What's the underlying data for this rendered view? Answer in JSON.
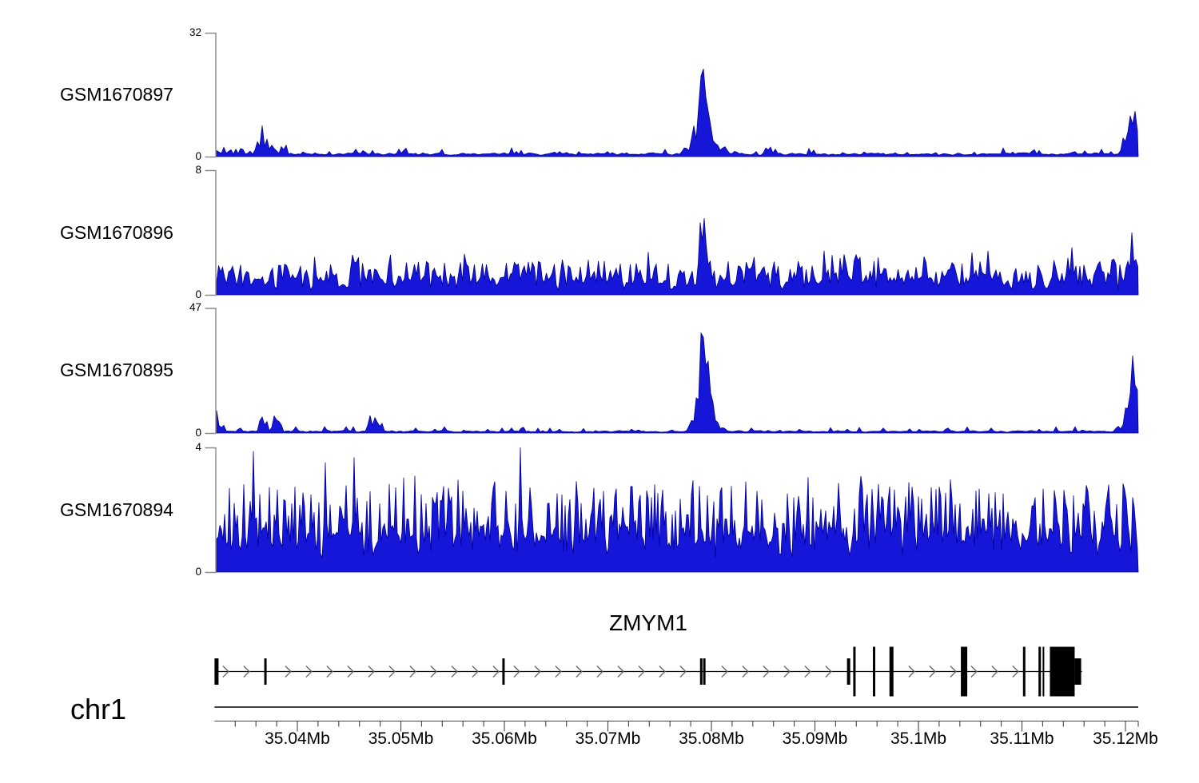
{
  "colors": {
    "coverage_fill": "#1616d8",
    "coverage_stroke": "#000099",
    "axis_bracket": "#8a8a8a",
    "ink": "#000000",
    "ruler": "#444444",
    "chevron": "#666666"
  },
  "chart_data": {
    "type": "area",
    "subtype": "genome-coverage-tracks",
    "x_axis": {
      "chrom": "chr1",
      "unit": "Mb",
      "range_mb": [
        35.032,
        35.1213
      ],
      "minor_tick_interval_mb": 0.002,
      "major_ticks": [
        {
          "mb": 35.04,
          "label": "35.04Mb"
        },
        {
          "mb": 35.05,
          "label": "35.05Mb"
        },
        {
          "mb": 35.06,
          "label": "35.06Mb"
        },
        {
          "mb": 35.07,
          "label": "35.07Mb"
        },
        {
          "mb": 35.08,
          "label": "35.08Mb"
        },
        {
          "mb": 35.09,
          "label": "35.09Mb"
        },
        {
          "mb": 35.1,
          "label": "35.1Mb"
        },
        {
          "mb": 35.11,
          "label": "35.11Mb"
        },
        {
          "mb": 35.12,
          "label": "35.12Mb"
        }
      ]
    },
    "peaks_x_unit": "screen_px",
    "tracks": [
      {
        "label": "GSM1670897",
        "ymin": 0,
        "ymax": 32,
        "texture": {
          "base": 0.01,
          "noise": 0.022,
          "spike_prob": 0.1,
          "spike_amp": 0.05,
          "seed": 7,
          "step": 3
        },
        "peaks": [
          [
            272,
            6,
            0.06
          ],
          [
            281,
            5,
            0.05
          ],
          [
            300,
            5,
            0.04
          ],
          [
            322,
            6,
            0.12
          ],
          [
            328,
            5,
            0.25
          ],
          [
            334,
            6,
            0.14
          ],
          [
            341,
            5,
            0.12
          ],
          [
            352,
            5,
            0.08
          ],
          [
            357,
            4,
            0.13
          ],
          [
            380,
            5,
            0.05
          ],
          [
            395,
            5,
            0.04
          ],
          [
            445,
            7,
            0.06
          ],
          [
            455,
            6,
            0.06
          ],
          [
            466,
            5,
            0.05
          ],
          [
            505,
            6,
            0.05
          ],
          [
            530,
            5,
            0.04
          ],
          [
            640,
            5,
            0.07
          ],
          [
            652,
            5,
            0.05
          ],
          [
            700,
            6,
            0.04
          ],
          [
            760,
            6,
            0.04
          ],
          [
            856,
            8,
            0.07
          ],
          [
            868,
            8,
            0.25
          ],
          [
            875,
            6,
            0.5
          ],
          [
            878,
            5,
            0.85
          ],
          [
            881,
            4,
            1.0
          ],
          [
            884,
            6,
            0.6
          ],
          [
            888,
            8,
            0.3
          ],
          [
            896,
            10,
            0.12
          ],
          [
            906,
            10,
            0.09
          ],
          [
            920,
            8,
            0.05
          ],
          [
            958,
            6,
            0.07
          ],
          [
            963,
            5,
            0.1
          ],
          [
            970,
            6,
            0.06
          ],
          [
            1055,
            6,
            0.04
          ],
          [
            1120,
            6,
            0.03
          ],
          [
            1170,
            6,
            0.04
          ],
          [
            1232,
            6,
            0.03
          ],
          [
            1293,
            6,
            0.07
          ],
          [
            1300,
            5,
            0.05
          ],
          [
            1345,
            6,
            0.04
          ],
          [
            1390,
            5,
            0.04
          ],
          [
            1405,
            5,
            0.15
          ],
          [
            1410,
            4,
            0.28
          ],
          [
            1414,
            4,
            0.33
          ],
          [
            1419,
            5,
            0.48
          ],
          [
            1424,
            6,
            0.26
          ]
        ]
      },
      {
        "label": "GSM1670896",
        "ymin": 0,
        "ymax": 8,
        "texture": {
          "base": 0.03,
          "noise": 0.14,
          "spike_prob": 0.42,
          "spike_amp": 0.2,
          "seed": 13,
          "step": 2.5
        },
        "peaks": [
          [
            290,
            5,
            0.3
          ],
          [
            310,
            4,
            0.25
          ],
          [
            340,
            5,
            0.28
          ],
          [
            365,
            4,
            0.22
          ],
          [
            400,
            4,
            0.2
          ],
          [
            420,
            4,
            0.24
          ],
          [
            455,
            4,
            0.22
          ],
          [
            470,
            4,
            0.28
          ],
          [
            500,
            4,
            0.2
          ],
          [
            523,
            5,
            0.3
          ],
          [
            550,
            4,
            0.22
          ],
          [
            576,
            4,
            0.26
          ],
          [
            610,
            4,
            0.22
          ],
          [
            640,
            4,
            0.25
          ],
          [
            667,
            5,
            0.34
          ],
          [
            690,
            4,
            0.25
          ],
          [
            705,
            4,
            0.28
          ],
          [
            740,
            4,
            0.22
          ],
          [
            770,
            4,
            0.3
          ],
          [
            800,
            4,
            0.28
          ],
          [
            820,
            5,
            0.32
          ],
          [
            850,
            4,
            0.28
          ],
          [
            865,
            4,
            0.25
          ],
          [
            876,
            5,
            0.58
          ],
          [
            880,
            3,
            1.0
          ],
          [
            884,
            5,
            0.45
          ],
          [
            888,
            6,
            0.3
          ],
          [
            910,
            4,
            0.25
          ],
          [
            935,
            4,
            0.3
          ],
          [
            960,
            4,
            0.25
          ],
          [
            1000,
            4,
            0.3
          ],
          [
            1035,
            4,
            0.28
          ],
          [
            1070,
            5,
            0.42
          ],
          [
            1076,
            4,
            0.3
          ],
          [
            1105,
            4,
            0.3
          ],
          [
            1135,
            4,
            0.28
          ],
          [
            1157,
            5,
            0.4
          ],
          [
            1185,
            4,
            0.28
          ],
          [
            1216,
            5,
            0.34
          ],
          [
            1245,
            4,
            0.28
          ],
          [
            1270,
            4,
            0.3
          ],
          [
            1300,
            4,
            0.28
          ],
          [
            1320,
            4,
            0.3
          ],
          [
            1341,
            5,
            0.38
          ],
          [
            1370,
            4,
            0.28
          ],
          [
            1395,
            4,
            0.35
          ],
          [
            1410,
            4,
            0.38
          ],
          [
            1416,
            5,
            0.5
          ],
          [
            1422,
            4,
            0.4
          ]
        ]
      },
      {
        "label": "GSM1670895",
        "ymin": 0,
        "ymax": 47,
        "texture": {
          "base": 0.006,
          "noise": 0.015,
          "spike_prob": 0.07,
          "spike_amp": 0.04,
          "seed": 21,
          "step": 3
        },
        "peaks": [
          [
            271,
            5,
            0.18
          ],
          [
            279,
            5,
            0.08
          ],
          [
            300,
            6,
            0.05
          ],
          [
            327,
            6,
            0.16
          ],
          [
            333,
            5,
            0.12
          ],
          [
            344,
            6,
            0.17
          ],
          [
            350,
            5,
            0.12
          ],
          [
            370,
            6,
            0.05
          ],
          [
            410,
            6,
            0.03
          ],
          [
            433,
            6,
            0.05
          ],
          [
            463,
            6,
            0.14
          ],
          [
            470,
            5,
            0.16
          ],
          [
            477,
            5,
            0.1
          ],
          [
            520,
            6,
            0.04
          ],
          [
            556,
            6,
            0.05
          ],
          [
            610,
            6,
            0.03
          ],
          [
            660,
            6,
            0.02
          ],
          [
            700,
            6,
            0.03
          ],
          [
            745,
            6,
            0.02
          ],
          [
            790,
            6,
            0.03
          ],
          [
            840,
            6,
            0.03
          ],
          [
            865,
            8,
            0.1
          ],
          [
            872,
            6,
            0.35
          ],
          [
            877,
            5,
            0.8
          ],
          [
            881,
            5,
            1.0
          ],
          [
            885,
            5,
            0.75
          ],
          [
            890,
            6,
            0.4
          ],
          [
            896,
            8,
            0.12
          ],
          [
            905,
            8,
            0.05
          ],
          [
            940,
            6,
            0.04
          ],
          [
            1000,
            6,
            0.03
          ],
          [
            1060,
            6,
            0.03
          ],
          [
            1105,
            6,
            0.04
          ],
          [
            1150,
            6,
            0.03
          ],
          [
            1185,
            6,
            0.05
          ],
          [
            1240,
            6,
            0.04
          ],
          [
            1300,
            6,
            0.03
          ],
          [
            1355,
            6,
            0.03
          ],
          [
            1398,
            5,
            0.07
          ],
          [
            1408,
            5,
            0.2
          ],
          [
            1413,
            4,
            0.45
          ],
          [
            1417,
            4,
            0.62
          ],
          [
            1421,
            5,
            0.5
          ],
          [
            1424,
            5,
            0.45
          ]
        ]
      },
      {
        "label": "GSM1670894",
        "ymin": 0,
        "ymax": 4,
        "texture": {
          "base": 0.1,
          "noise": 0.3,
          "spike_prob": 0.55,
          "spike_amp": 0.45,
          "seed": 42,
          "step": 2
        },
        "peaks": [
          [
            317,
            4,
            0.97
          ],
          [
            330,
            4,
            0.5
          ],
          [
            365,
            4,
            0.55
          ],
          [
            407,
            4,
            0.88
          ],
          [
            430,
            4,
            0.6
          ],
          [
            443,
            4,
            0.92
          ],
          [
            475,
            4,
            0.55
          ],
          [
            510,
            4,
            0.6
          ],
          [
            545,
            4,
            0.55
          ],
          [
            580,
            4,
            0.5
          ],
          [
            615,
            4,
            0.55
          ],
          [
            651,
            4,
            1.0
          ],
          [
            685,
            4,
            0.55
          ],
          [
            720,
            4,
            0.6
          ],
          [
            755,
            4,
            0.65
          ],
          [
            790,
            4,
            0.97
          ],
          [
            815,
            4,
            0.6
          ],
          [
            860,
            4,
            0.65
          ],
          [
            885,
            4,
            0.55
          ],
          [
            908,
            4,
            0.6
          ],
          [
            947,
            4,
            0.65
          ],
          [
            980,
            4,
            0.55
          ],
          [
            1010,
            4,
            0.6
          ],
          [
            1040,
            4,
            0.5
          ],
          [
            1075,
            4,
            0.6
          ],
          [
            1110,
            4,
            0.55
          ],
          [
            1137,
            4,
            0.72
          ],
          [
            1165,
            4,
            0.68
          ],
          [
            1200,
            4,
            0.55
          ],
          [
            1230,
            4,
            0.6
          ],
          [
            1260,
            4,
            0.55
          ],
          [
            1292,
            4,
            0.75
          ],
          [
            1320,
            4,
            0.65
          ],
          [
            1355,
            4,
            0.55
          ],
          [
            1385,
            4,
            0.6
          ],
          [
            1410,
            4,
            0.55
          ],
          [
            1420,
            4,
            0.5
          ]
        ]
      }
    ],
    "gene_track": {
      "gene": "ZMYM1",
      "strand": "+",
      "gene_span_mb": [
        35.032,
        35.1158
      ],
      "exons": [
        {
          "mb": 35.032,
          "w": 5,
          "kind": "short"
        },
        {
          "mb": 35.0368,
          "w": 3,
          "kind": "short"
        },
        {
          "mb": 35.0598,
          "w": 3,
          "kind": "short"
        },
        {
          "mb": 35.0789,
          "w": 3,
          "kind": "short"
        },
        {
          "mb": 35.0792,
          "w": 3,
          "kind": "short"
        },
        {
          "mb": 35.0931,
          "w": 4,
          "kind": "short"
        },
        {
          "mb": 35.0937,
          "w": 3,
          "kind": "tall"
        },
        {
          "mb": 35.0956,
          "w": 3,
          "kind": "tall"
        },
        {
          "mb": 35.0972,
          "w": 5,
          "kind": "tall"
        },
        {
          "mb": 35.1041,
          "w": 8,
          "kind": "tall"
        },
        {
          "mb": 35.1101,
          "w": 3,
          "kind": "tall"
        },
        {
          "mb": 35.1116,
          "w": 3,
          "kind": "tall"
        },
        {
          "mb": 35.112,
          "w": 2,
          "kind": "tall"
        },
        {
          "mb": 35.1127,
          "w": 31,
          "kind": "tall"
        },
        {
          "mb": 35.1151,
          "w": 8,
          "kind": "short"
        }
      ]
    }
  }
}
